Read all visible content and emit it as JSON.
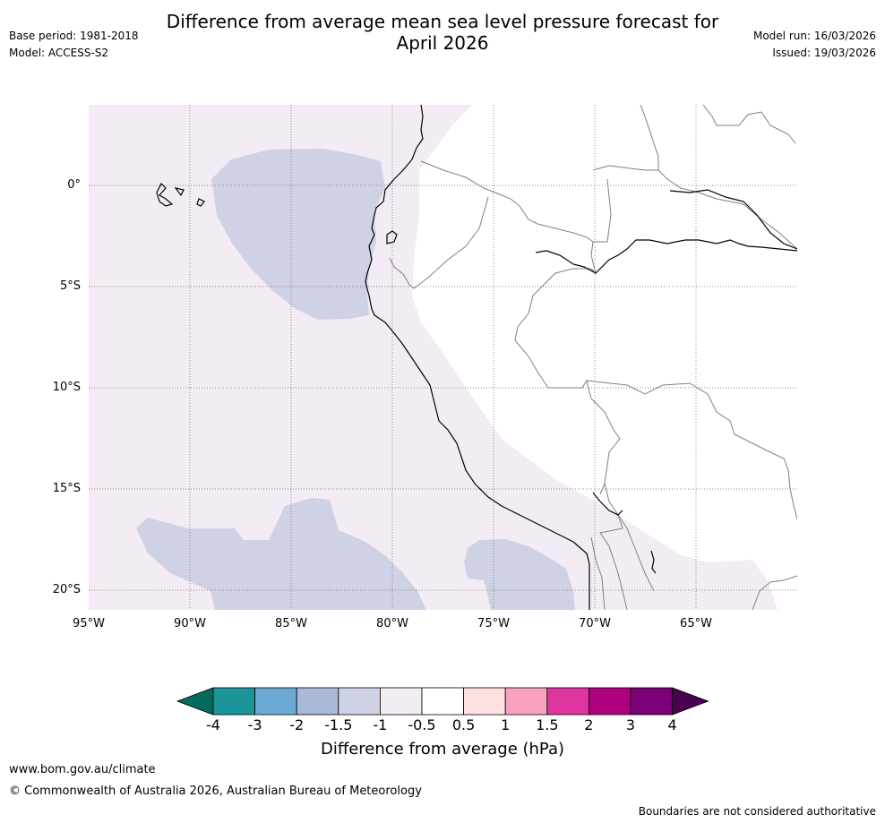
{
  "title_line1": "Difference from average mean sea level pressure forecast for",
  "title_line2": "April 2026",
  "meta_left": {
    "base_period": "Base period: 1981-2018",
    "model": "Model: ACCESS-S2"
  },
  "meta_right": {
    "model_run": "Model run: 16/03/2026",
    "issued": "Issued: 19/03/2026"
  },
  "map": {
    "lat_labels": [
      "0°",
      "5°S",
      "10°S",
      "15°S",
      "20°S"
    ],
    "lon_labels": [
      "95°W",
      "90°W",
      "85°W",
      "80°W",
      "75°W",
      "70°W",
      "65°W"
    ],
    "fill_colors": {
      "light_pink": "#f4ecf5",
      "lavender": "#cfd1e4",
      "land_line": "#000000",
      "border_line": "#808080"
    }
  },
  "colorbar": {
    "ticks": [
      "-4",
      "-3",
      "-2",
      "-1.5",
      "-1",
      "-0.5",
      "0.5",
      "1",
      "1.5",
      "2",
      "3",
      "4"
    ],
    "colors": [
      "#1a9599",
      "#6aaad3",
      "#a9b9d7",
      "#cfd1e4",
      "#f4ecf5",
      "#ffffff",
      "#fde0df",
      "#f9a2bf",
      "#de359f",
      "#ae017e",
      "#7a0177"
    ],
    "under_color": "#046b5e",
    "over_color": "#4a0050",
    "label": "Difference from average (hPa)"
  },
  "footer": {
    "url": "www.bom.gov.au/climate",
    "copyright": "© Commonwealth of Australia 2026, Australian Bureau of Meteorology",
    "disclaimer": "Boundaries are not considered authoritative"
  }
}
